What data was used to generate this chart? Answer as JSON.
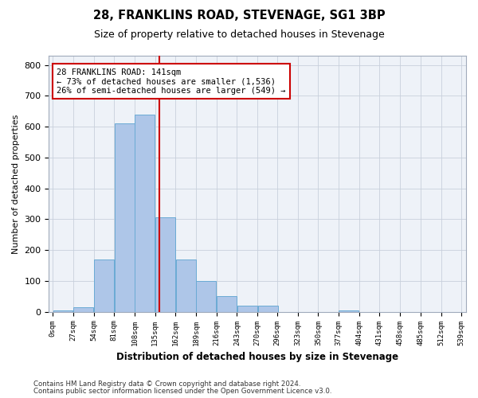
{
  "title1": "28, FRANKLINS ROAD, STEVENAGE, SG1 3BP",
  "title2": "Size of property relative to detached houses in Stevenage",
  "xlabel": "Distribution of detached houses by size in Stevenage",
  "ylabel": "Number of detached properties",
  "property_size": 141,
  "bin_edges": [
    0,
    27,
    54,
    81,
    108,
    135,
    162,
    189,
    216,
    243,
    270,
    296,
    323,
    350,
    377,
    404,
    431,
    458,
    485,
    512,
    539
  ],
  "bar_heights": [
    5,
    15,
    170,
    610,
    640,
    305,
    170,
    100,
    50,
    20,
    20,
    0,
    0,
    0,
    5,
    0,
    0,
    0,
    0,
    0
  ],
  "bar_color": "#aec6e8",
  "bar_edge_color": "#6aaad4",
  "vline_color": "#cc0000",
  "vline_x": 141,
  "annotation_text": "28 FRANKLINS ROAD: 141sqm\n← 73% of detached houses are smaller (1,536)\n26% of semi-detached houses are larger (549) →",
  "annotation_box_color": "#ffffff",
  "annotation_box_edge_color": "#cc0000",
  "annotation_fontsize": 7.5,
  "tick_labels": [
    "0sqm",
    "27sqm",
    "54sqm",
    "81sqm",
    "108sqm",
    "135sqm",
    "162sqm",
    "189sqm",
    "216sqm",
    "243sqm",
    "270sqm",
    "296sqm",
    "323sqm",
    "350sqm",
    "377sqm",
    "404sqm",
    "431sqm",
    "458sqm",
    "485sqm",
    "512sqm",
    "539sqm"
  ],
  "ylim": [
    0,
    830
  ],
  "yticks": [
    0,
    100,
    200,
    300,
    400,
    500,
    600,
    700,
    800
  ],
  "footer1": "Contains HM Land Registry data © Crown copyright and database right 2024.",
  "footer2": "Contains public sector information licensed under the Open Government Licence v3.0.",
  "bg_color": "#eef2f8",
  "plot_bg_color": "#eef2f8"
}
